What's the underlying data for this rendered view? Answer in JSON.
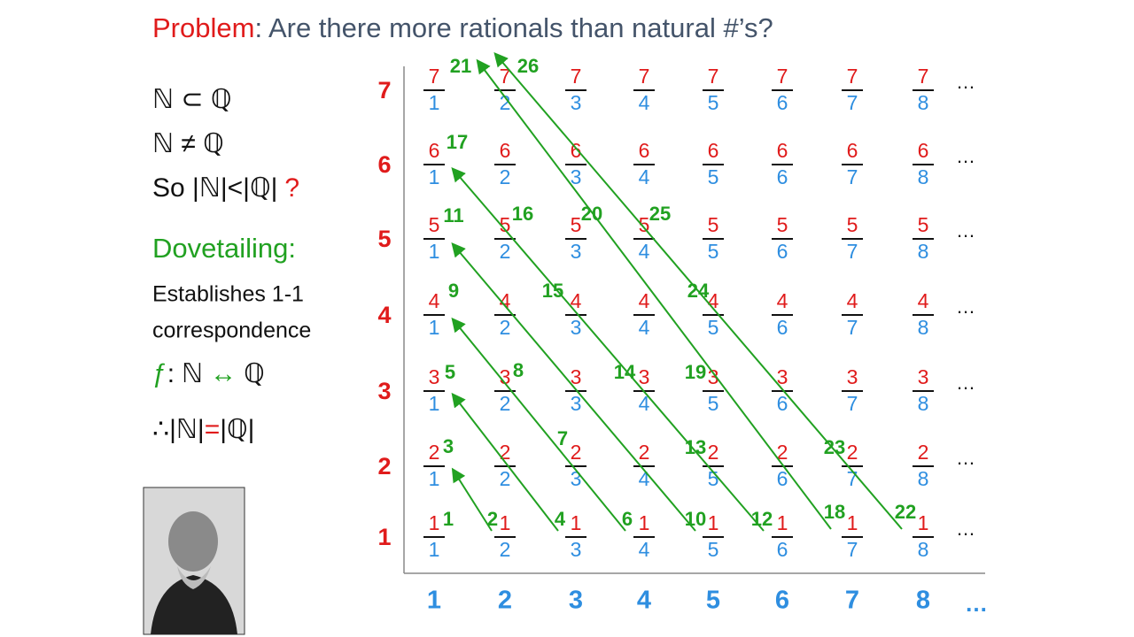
{
  "title": {
    "highlight": "Problem",
    "rest": ": Are there more rationals than natural #’s?"
  },
  "notes": {
    "subset": "ℕ ⊂ ℚ",
    "not_equal": "ℕ ≠ ℚ",
    "so": "So |ℕ|<|ℚ|",
    "so_mark": "?",
    "method": "Dovetailing:",
    "line1": "Establishes 1-1",
    "line2": "correspondence",
    "f_name": "ƒ",
    "f_colon": ":",
    "f_left": "ℕ",
    "f_arrow": "↔",
    "f_right": "ℚ",
    "therefore_left": "∴|ℕ|",
    "therefore_eq": "=",
    "therefore_right": "|ℚ|"
  },
  "grid": {
    "row_labels": [
      "1",
      "2",
      "3",
      "4",
      "5",
      "6",
      "7"
    ],
    "column_labels": [
      "1",
      "2",
      "3",
      "4",
      "5",
      "6",
      "7",
      "8"
    ],
    "row_more": "…",
    "column_more": "…",
    "enumeration": [
      "1",
      "2",
      "3",
      "4",
      "5",
      "6",
      "7",
      "8",
      "9",
      "10",
      "11",
      "12",
      "13",
      "14",
      "15",
      "16",
      "17",
      "18",
      "19",
      "20",
      "21",
      "22",
      "23",
      "24",
      "25",
      "26"
    ]
  }
}
